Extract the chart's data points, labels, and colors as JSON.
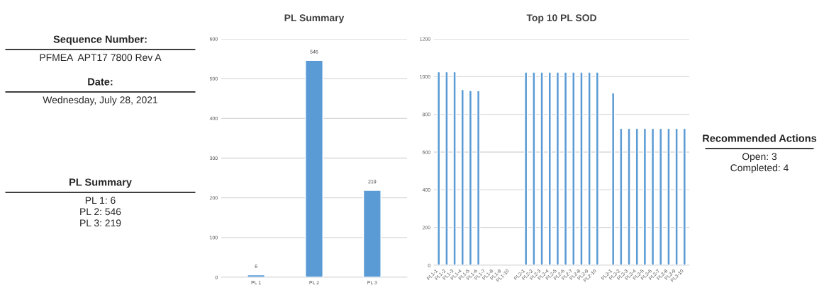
{
  "chart_data": [
    {
      "type": "other",
      "title": "Sequence Number:",
      "annotations": [
        "PFMEA  APT17 7800 Rev A"
      ]
    },
    {
      "type": "other",
      "title": "Date:",
      "annotations": [
        "Wednesday, July 28, 2021"
      ]
    },
    {
      "type": "other",
      "title": "PL Summary",
      "annotations": [
        "PL 1: 6",
        "PL 2: 546",
        "PL 3: 219"
      ]
    },
    {
      "type": "bar",
      "title": "PL Summary",
      "categories": [
        "PL 1",
        "PL 2",
        "PL 3"
      ],
      "values": [
        6,
        546,
        219
      ],
      "color": "#5b9bd5",
      "ylim": [
        0,
        600
      ],
      "yticks": [
        0,
        100,
        200,
        300,
        400,
        500,
        600
      ],
      "grid": "y",
      "data_labels": true
    },
    {
      "type": "bar",
      "title": "Top 10 PL SOD",
      "categories": [
        "PL1-1",
        "PL1-2",
        "PL1-3",
        "PL1-4",
        "PL1-5",
        "PL1-6",
        "PL1-7",
        "PL1-8",
        "PL1-9",
        "PL1-10",
        null,
        "PL2-1",
        "PL2-2",
        "PL2-3",
        "PL2-4",
        "PL2-5",
        "PL2-6",
        "PL2-7",
        "PL2-8",
        "PL2-9",
        "PL2-10",
        null,
        "PL3-1",
        "PL3-2",
        "PL3-3",
        "PL3-4",
        "PL3-5",
        "PL3-6",
        "PL3-7",
        "PL3-8",
        "PL3-9",
        "PL3-10"
      ],
      "values": [
        1025,
        1025,
        1025,
        932,
        926,
        925,
        null,
        null,
        null,
        null,
        null,
        1024,
        1024,
        1024,
        1024,
        1024,
        1024,
        1024,
        1024,
        1024,
        1024,
        null,
        914,
        725,
        725,
        725,
        725,
        725,
        725,
        725,
        725,
        725
      ],
      "color": "#5b9bd5",
      "ylim": [
        0,
        1200
      ],
      "yticks": [
        0,
        200,
        400,
        600,
        800,
        1000,
        1200
      ],
      "grid": "y"
    },
    {
      "type": "other",
      "title": "Recommended Actions",
      "annotations": [
        "Open: 3",
        "Completed: 4"
      ]
    }
  ]
}
